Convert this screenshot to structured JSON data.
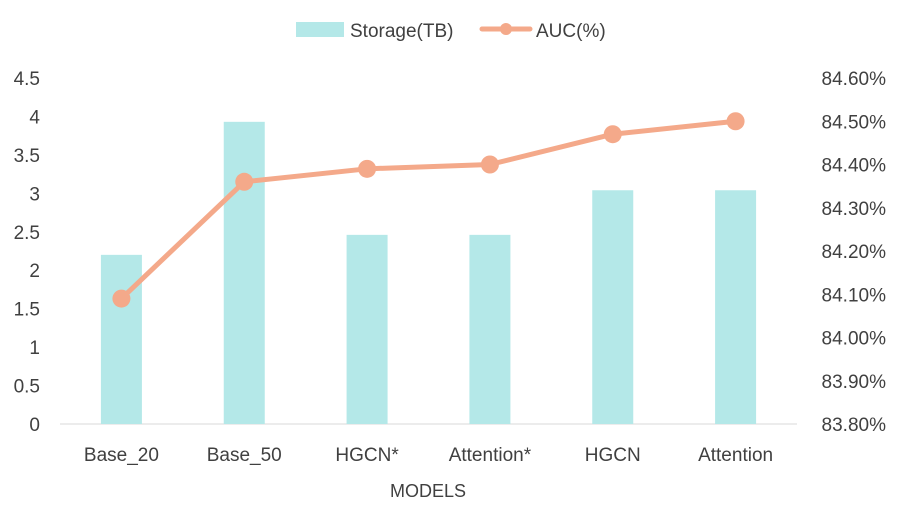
{
  "chart_data": {
    "type": "bar",
    "categories": [
      "Base_20",
      "Base_50",
      "HGCN*",
      "Attention*",
      "HGCN",
      "Attention"
    ],
    "series": [
      {
        "name": "Storage(TB)",
        "type": "bar",
        "axis": "left",
        "color": "#b4e8e8",
        "values": [
          2.2,
          3.93,
          2.46,
          2.46,
          3.04,
          3.04
        ]
      },
      {
        "name": "AUC(%)",
        "type": "line",
        "axis": "right",
        "color": "#f4a98a",
        "values": [
          84.09,
          84.36,
          84.39,
          84.4,
          84.47,
          84.5
        ]
      }
    ],
    "xlabel": "MODELS",
    "ylabel": "",
    "y2label": "",
    "ylim": [
      0,
      4.5
    ],
    "y_ticks": [
      "0",
      "0.5",
      "1",
      "1.5",
      "2",
      "2.5",
      "3",
      "3.5",
      "4",
      "4.5"
    ],
    "y2lim": [
      83.8,
      84.6
    ],
    "y2_ticks": [
      "83.80%",
      "83.90%",
      "84.00%",
      "84.10%",
      "84.20%",
      "84.30%",
      "84.40%",
      "84.50%",
      "84.60%"
    ],
    "grid": false,
    "legend": "top-center"
  }
}
